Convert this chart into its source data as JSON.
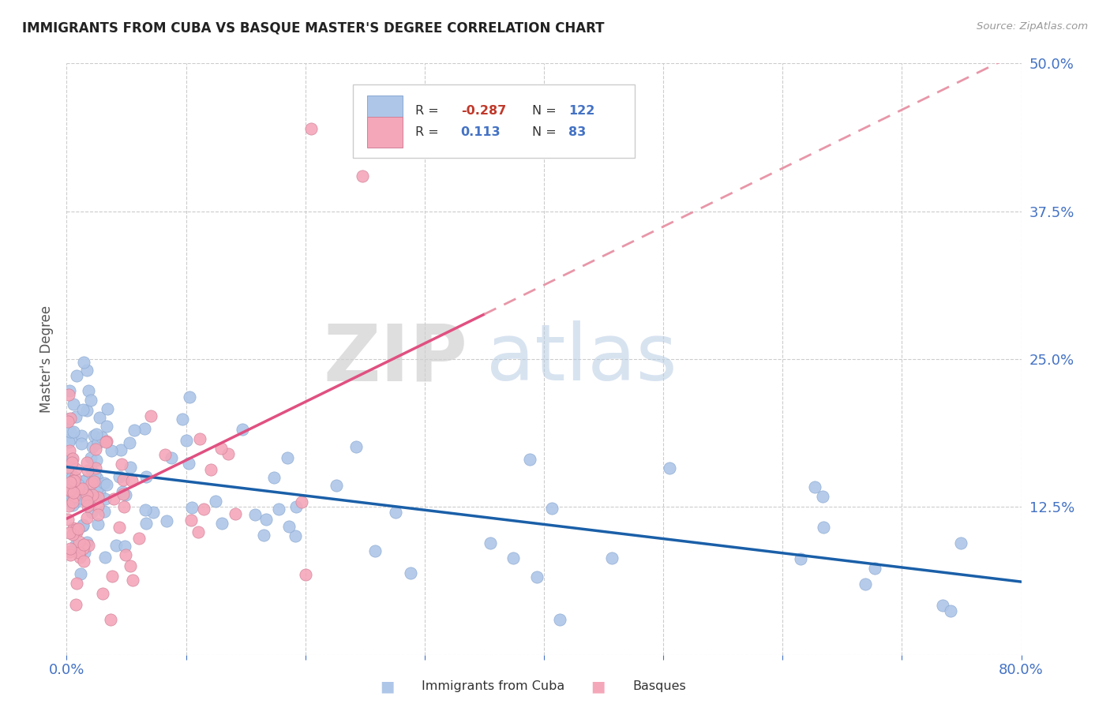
{
  "title": "IMMIGRANTS FROM CUBA VS BASQUE MASTER'S DEGREE CORRELATION CHART",
  "source_text": "Source: ZipAtlas.com",
  "ylabel": "Master's Degree",
  "xlim": [
    0.0,
    0.8
  ],
  "ylim": [
    0.0,
    0.5
  ],
  "xticks": [
    0.0,
    0.1,
    0.2,
    0.3,
    0.4,
    0.5,
    0.6,
    0.7,
    0.8
  ],
  "xticklabels": [
    "0.0%",
    "",
    "",
    "",
    "",
    "",
    "",
    "",
    "80.0%"
  ],
  "yticks": [
    0.0,
    0.125,
    0.25,
    0.375,
    0.5
  ],
  "yticklabels": [
    "",
    "12.5%",
    "25.0%",
    "37.5%",
    "50.0%"
  ],
  "blue_color": "#aec6e8",
  "pink_color": "#f4a7b9",
  "blue_line_color": "#1a5fa8",
  "pink_line_solid_color": "#e05080",
  "pink_line_dash_color": "#e896a8",
  "legend_r1": "-0.287",
  "legend_n1": "122",
  "legend_r2": "0.113",
  "legend_n2": "83",
  "legend_label1": "Immigrants from Cuba",
  "legend_label2": "Basques",
  "watermark_zip": "ZIP",
  "watermark_atlas": "atlas",
  "title_color": "#222222",
  "axis_tick_color": "#4472c4",
  "legend_r1_color": "#c0392b",
  "legend_r2_color": "#4472c4",
  "legend_n_color": "#4472c4",
  "legend_label_color": "#333333"
}
